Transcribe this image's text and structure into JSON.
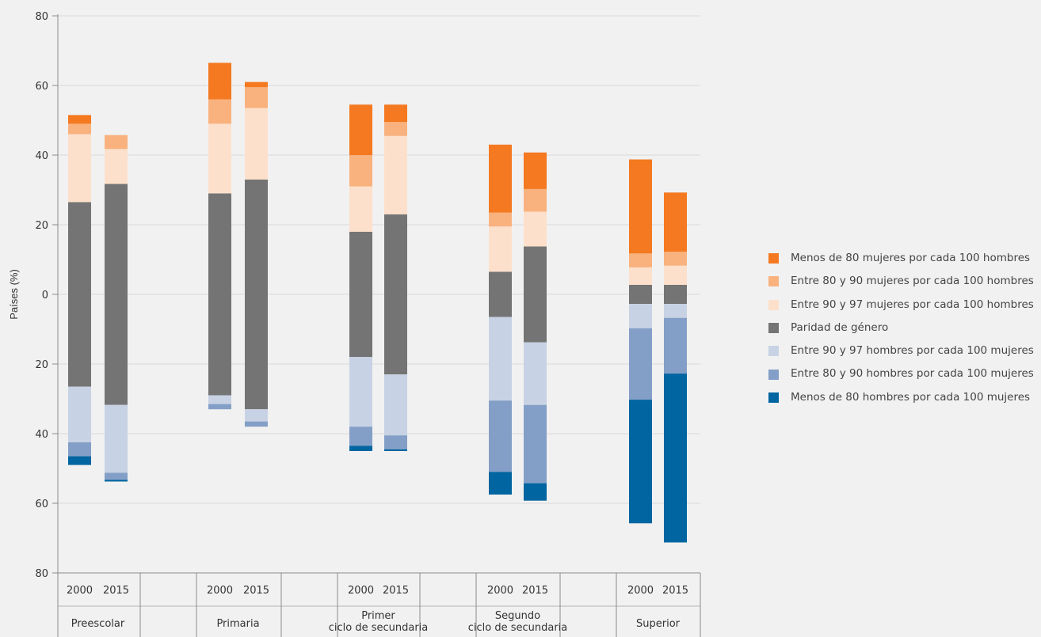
{
  "chart_data": {
    "type": "bar",
    "stacked": "diverging",
    "ylabel": "Países (%)",
    "ylim": [
      -80,
      80
    ],
    "yticks": [
      80,
      60,
      40,
      20,
      0,
      20,
      40,
      60,
      80
    ],
    "grid": true,
    "legend_position": "right",
    "groups": [
      {
        "label": "Preescolar",
        "years": [
          "2000",
          "2015"
        ]
      },
      {
        "label": "Primaria",
        "years": [
          "2000",
          "2015"
        ]
      },
      {
        "label": "Primer ciclo de secundaria",
        "years": [
          "2000",
          "2015"
        ]
      },
      {
        "label": "Segundo ciclo de secundaria",
        "years": [
          "2000",
          "2015"
        ]
      },
      {
        "label": "Superior",
        "years": [
          "2000",
          "2015"
        ]
      }
    ],
    "categories": [
      "Preescolar 2000",
      "Preescolar 2015",
      "Primaria 2000",
      "Primaria 2015",
      "Primer ciclo de secundaria 2000",
      "Primer ciclo de secundaria 2015",
      "Segundo ciclo de secundaria 2000",
      "Segundo ciclo de secundaria 2015",
      "Superior 2000",
      "Superior 2015"
    ],
    "series": [
      {
        "name": "Menos de 80 mujeres por cada 100 hombres",
        "side": "up",
        "color": "#f47920",
        "values": [
          2.5,
          0,
          10.5,
          1.5,
          14.5,
          5,
          19.5,
          10.5,
          27,
          17
        ]
      },
      {
        "name": "Entre 80 y 90 mujeres por cada 100 hombres",
        "side": "up",
        "color": "#f9b27e",
        "values": [
          3,
          4,
          7,
          6,
          9,
          4,
          4,
          6.5,
          4,
          4
        ]
      },
      {
        "name": "Entre 90 y 97 mujeres por cada 100 hombres",
        "side": "up",
        "color": "#fde0cb",
        "values": [
          19.5,
          10,
          20,
          20.5,
          13,
          22.5,
          13,
          10,
          5,
          5.5
        ]
      },
      {
        "name": "Paridad de género",
        "side": "center",
        "color": "#747474",
        "values": [
          53,
          63.5,
          58,
          66,
          36,
          46,
          13,
          27.5,
          5.5,
          5.5
        ]
      },
      {
        "name": "Entre 90 y 97 hombres por cada 100 mujeres",
        "side": "down",
        "color": "#c7d2e4",
        "values": [
          16,
          19.5,
          2.5,
          3.5,
          20,
          17.5,
          24,
          18,
          7,
          4
        ]
      },
      {
        "name": "Entre 80 y 90 hombres por cada 100 mujeres",
        "side": "down",
        "color": "#849fc7",
        "values": [
          4,
          2,
          1.5,
          1.5,
          5.5,
          4,
          20.5,
          22.5,
          20.5,
          16
        ]
      },
      {
        "name": "Menos de 80 hombres por cada 100 mujeres",
        "side": "down",
        "color": "#0065a0",
        "values": [
          2.5,
          0.5,
          0,
          0,
          1.5,
          0.5,
          6.5,
          5,
          35.5,
          48.5
        ]
      }
    ]
  }
}
